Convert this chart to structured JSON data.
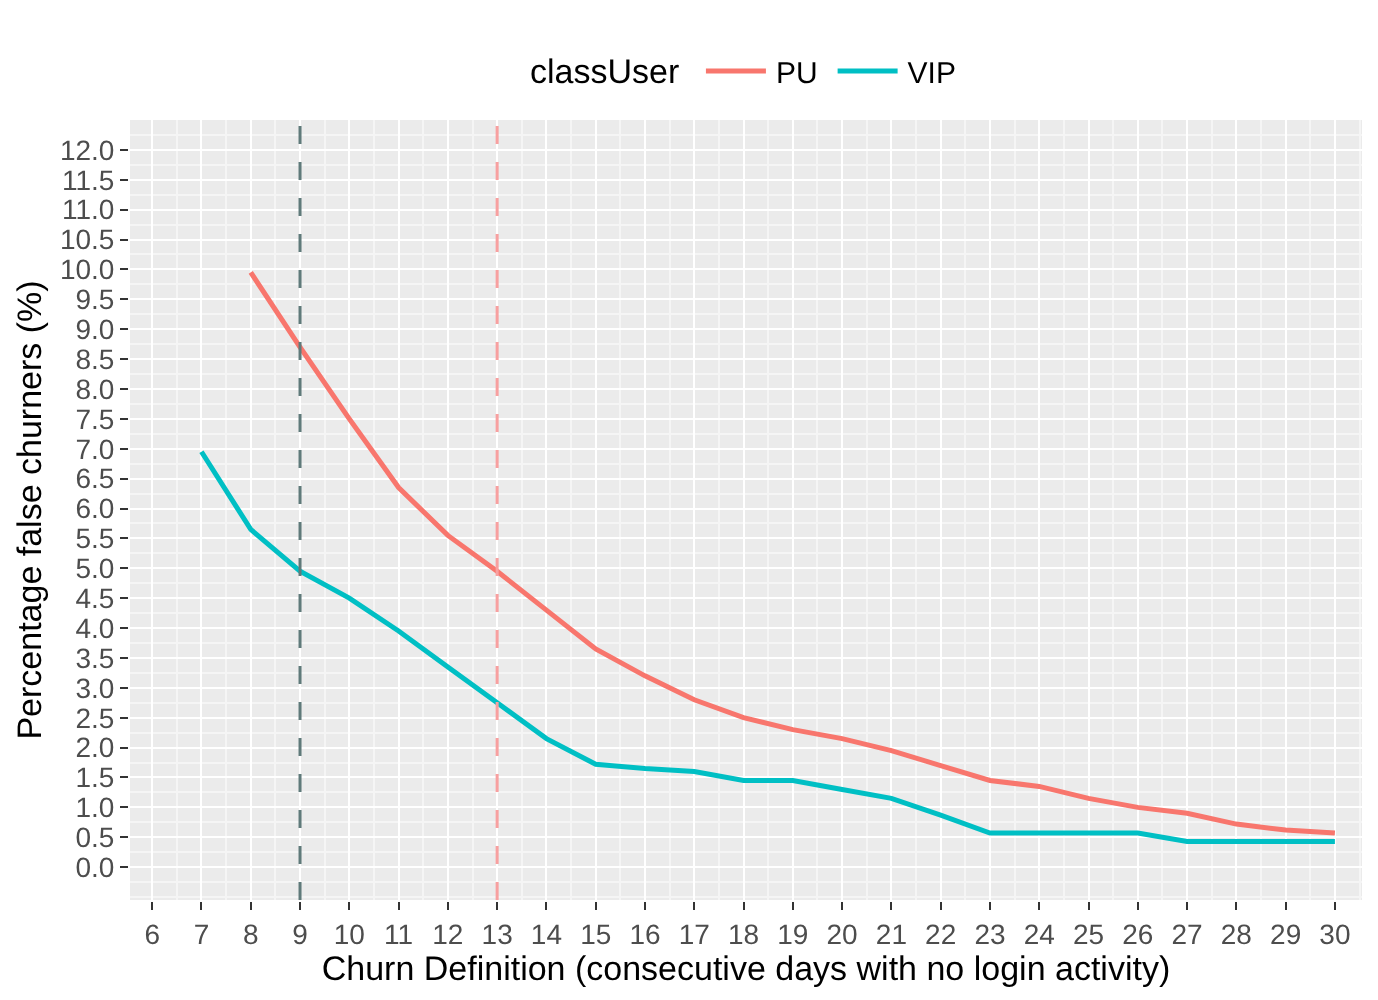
{
  "chart_data": {
    "type": "line",
    "xlabel": "Churn Definition (consecutive days with no login activity)",
    "ylabel": "Percentage false churners (%)",
    "legend_title": "classUser",
    "legend": "top",
    "grid": true,
    "line_style": "solid",
    "marker": "none",
    "xlim": [
      5.55,
      30.55
    ],
    "xticks": [
      6,
      7,
      8,
      9,
      10,
      11,
      12,
      13,
      14,
      15,
      16,
      17,
      18,
      19,
      20,
      21,
      22,
      23,
      24,
      25,
      26,
      27,
      28,
      29,
      30
    ],
    "ylim": [
      -0.55,
      12.5
    ],
    "yticks": [
      {
        "value": 0,
        "label": "0.0"
      },
      {
        "value": 0.5,
        "label": "0.5"
      },
      {
        "value": 1,
        "label": "1.0"
      },
      {
        "value": 1.5,
        "label": "1.5"
      },
      {
        "value": 2,
        "label": "2.0"
      },
      {
        "value": 2.5,
        "label": "2.5"
      },
      {
        "value": 3,
        "label": "3.0"
      },
      {
        "value": 3.5,
        "label": "3.5"
      },
      {
        "value": 4,
        "label": "4.0"
      },
      {
        "value": 4.5,
        "label": "4.5"
      },
      {
        "value": 5,
        "label": "5.0"
      },
      {
        "value": 5.5,
        "label": "5.5"
      },
      {
        "value": 6,
        "label": "6.0"
      },
      {
        "value": 6.5,
        "label": "6.5"
      },
      {
        "value": 7,
        "label": "7.0"
      },
      {
        "value": 7.5,
        "label": "7.5"
      },
      {
        "value": 8,
        "label": "8.0"
      },
      {
        "value": 8.5,
        "label": "8.5"
      },
      {
        "value": 9,
        "label": "9.0"
      },
      {
        "value": 9.5,
        "label": "9.5"
      },
      {
        "value": 10,
        "label": "10.0"
      },
      {
        "value": 10.5,
        "label": "10.5"
      },
      {
        "value": 11,
        "label": "11.0"
      },
      {
        "value": 11.5,
        "label": "11.5"
      },
      {
        "value": 12,
        "label": "12.0"
      }
    ],
    "series": [
      {
        "name": "PU",
        "color": "#f8766d",
        "x": [
          8,
          9,
          10,
          11,
          12,
          13,
          14,
          15,
          16,
          17,
          18,
          19,
          20,
          21,
          22,
          23,
          24,
          25,
          26,
          27,
          28,
          29,
          30
        ],
        "values": [
          9.95,
          8.7,
          7.5,
          6.35,
          5.55,
          4.95,
          4.3,
          3.65,
          3.2,
          2.8,
          2.5,
          2.3,
          2.15,
          1.95,
          1.7,
          1.45,
          1.35,
          1.15,
          1.0,
          0.9,
          0.72,
          0.62,
          0.57
        ]
      },
      {
        "name": "VIP",
        "color": "#00bfc4",
        "x": [
          7,
          8,
          9,
          10,
          11,
          12,
          13,
          14,
          15,
          16,
          17,
          18,
          19,
          20,
          21,
          22,
          23,
          24,
          25,
          26,
          27,
          28,
          29,
          30
        ],
        "values": [
          6.95,
          5.65,
          4.95,
          4.5,
          3.95,
          3.35,
          2.75,
          2.15,
          1.72,
          1.65,
          1.6,
          1.45,
          1.45,
          1.3,
          1.15,
          0.87,
          0.57,
          0.57,
          0.57,
          0.57,
          0.43,
          0.43,
          0.43,
          0.43
        ]
      }
    ],
    "ref_lines": [
      {
        "axis": "x",
        "value": 9,
        "color": "#5f7a7a",
        "line_style": "dashed"
      },
      {
        "axis": "x",
        "value": 13,
        "color": "#f8a0a0",
        "line_style": "dashed"
      }
    ]
  }
}
